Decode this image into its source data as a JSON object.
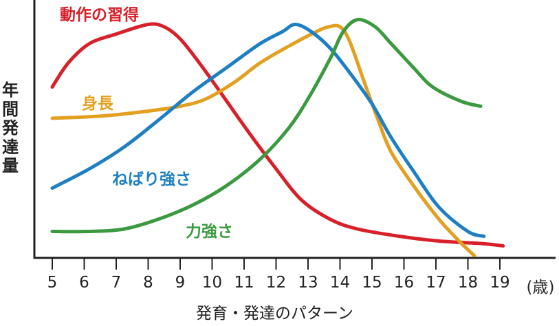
{
  "chart_data": {
    "type": "line",
    "title": "",
    "xlabel": "発育・発達のパターン",
    "ylabel": "年間発達量",
    "x_unit": "(歳)",
    "x_ticks": [
      "5",
      "6",
      "7",
      "8",
      "9",
      "10",
      "11",
      "12",
      "13",
      "14",
      "15",
      "16",
      "17",
      "18",
      "19"
    ],
    "xlim": [
      5,
      19
    ],
    "ylim": [
      0,
      100
    ],
    "grid": false,
    "y_ticks_shown": false,
    "series": [
      {
        "name": "動作の習得",
        "color": "#d7202a",
        "x": [
          5,
          5.5,
          6.16,
          7,
          8,
          8.5,
          9,
          9.6,
          10.25,
          11.1,
          12,
          12.8,
          13.7,
          14.55,
          15.85,
          17.1,
          18.4,
          19.1
        ],
        "y": [
          71,
          81,
          89,
          93,
          97,
          96,
          91,
          81,
          69,
          53,
          37,
          24,
          16,
          12,
          9,
          7,
          6,
          5
        ]
      },
      {
        "name": "身長",
        "color": "#e3a020",
        "x": [
          5,
          6.6,
          8,
          9,
          9.8,
          10.7,
          11.5,
          12.4,
          13.26,
          13.65,
          14,
          14.3,
          14.76,
          15.2,
          15.6,
          16.3,
          17.1,
          17.8,
          18.2
        ],
        "y": [
          58,
          59,
          61,
          63,
          66,
          73,
          81,
          88,
          94,
          96,
          96,
          90,
          73,
          57,
          44,
          30,
          16,
          6,
          1
        ]
      },
      {
        "name": "ねばり強さ",
        "color": "#1f7fc3",
        "x": [
          5,
          6.16,
          7.24,
          8.3,
          9.4,
          10.45,
          11.5,
          12.2,
          12.6,
          13.1,
          13.7,
          14.3,
          15,
          15.6,
          16.3,
          17.1,
          18,
          18.5
        ],
        "y": [
          29,
          37,
          46,
          57,
          69,
          79,
          89,
          94,
          97,
          94,
          87,
          77,
          64,
          50,
          36,
          21,
          11,
          9
        ]
      },
      {
        "name": "力強さ",
        "color": "#3b9a3f",
        "x": [
          5,
          6.16,
          7.24,
          8.3,
          9.4,
          10.45,
          11.5,
          12.4,
          13.04,
          13.7,
          14.1,
          14.55,
          15.1,
          15.6,
          16.3,
          16.9,
          17.8,
          18.4
        ],
        "y": [
          11,
          11,
          12,
          16,
          22,
          30,
          41,
          54,
          67,
          83,
          94,
          99,
          96,
          89,
          79,
          71,
          65,
          63
        ]
      }
    ]
  }
}
